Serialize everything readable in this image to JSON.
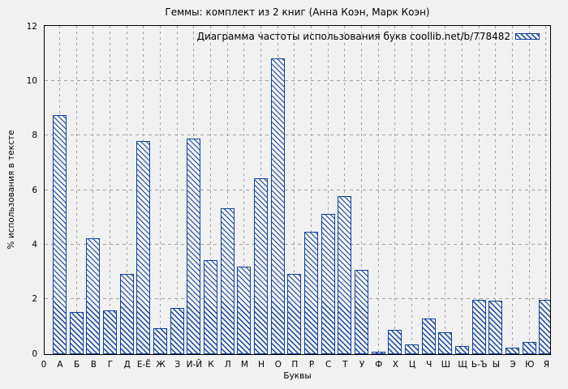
{
  "title": "Геммы: комплект из 2 книг (Анна Коэн, Марк Коэн)",
  "colors": {
    "bar_blue": "#0f419c",
    "grid_gray": "#a2a2a2",
    "background": "#f1f1f1",
    "border_black": "#000000"
  },
  "chart_data": {
    "type": "bar",
    "title": "Геммы: комплект из 2 книг (Анна Коэн, Марк Коэн)",
    "legend": "Диаграмма частоты использования букв coollib.net/b/778482",
    "legend_position": "top-right",
    "legend_swatch": "blue-diagonal-hatch",
    "xlabel": "Буквы",
    "ylabel": "% использования в тексте",
    "ylim": [
      0,
      12
    ],
    "yticks": [
      0,
      2,
      4,
      6,
      8,
      10,
      12
    ],
    "origin_label": "0",
    "grid": true,
    "bar_style": "diagonal-hatch",
    "categories": [
      "А",
      "Б",
      "В",
      "Г",
      "Д",
      "Е-Ё",
      "Ж",
      "З",
      "И-Й",
      "К",
      "Л",
      "М",
      "Н",
      "О",
      "П",
      "Р",
      "С",
      "Т",
      "У",
      "Ф",
      "Х",
      "Ц",
      "Ч",
      "Ш",
      "Щ",
      "Ь-Ъ",
      "Ы",
      "Э",
      "Ю",
      "Я"
    ],
    "values": [
      8.75,
      1.55,
      4.25,
      1.6,
      2.95,
      7.8,
      0.95,
      1.7,
      7.9,
      3.45,
      5.35,
      3.2,
      6.45,
      10.85,
      2.95,
      4.5,
      5.15,
      5.8,
      3.1,
      0.1,
      0.9,
      0.35,
      1.3,
      0.8,
      0.3,
      2.0,
      1.95,
      0.25,
      0.45,
      2.0
    ]
  }
}
